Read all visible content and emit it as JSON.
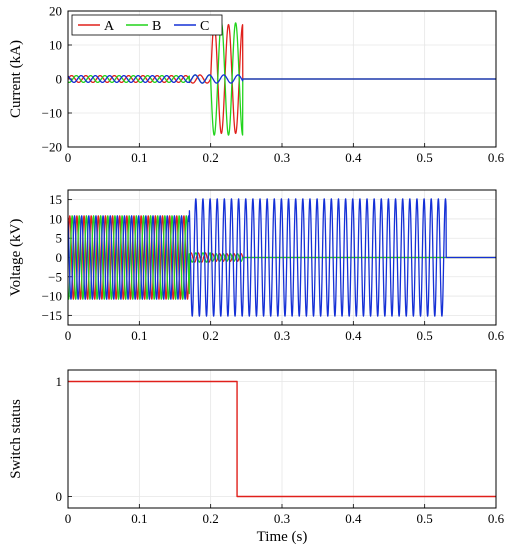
{
  "chart_data": [
    {
      "type": "line",
      "ylabel": "Current (kA)",
      "xlim": [
        0,
        0.6
      ],
      "ylim": [
        -20,
        20
      ],
      "xticks": [
        "0",
        "0.1",
        "0.2",
        "0.3",
        "0.4",
        "0.5",
        "0.6"
      ],
      "yticks": [
        "20",
        "10",
        "0",
        "−10",
        "−20"
      ],
      "grid": true,
      "legend": {
        "position": "top-left",
        "entries": [
          "A",
          "B",
          "C"
        ]
      },
      "series": [
        {
          "name": "A",
          "color": "#e0201b",
          "frequency_hz": 50,
          "segments": [
            {
              "t": [
                0,
                0.17
              ],
              "amplitude": 1.0,
              "phase_deg": 0
            },
            {
              "t": [
                0.2,
                0.245
              ],
              "amplitude": 16.0,
              "phase_deg": 0
            },
            {
              "t": [
                0.245,
                0.6
              ],
              "amplitude": 0,
              "phase_deg": 0
            }
          ]
        },
        {
          "name": "B",
          "color": "#22d41c",
          "frequency_hz": 50,
          "segments": [
            {
              "t": [
                0,
                0.17
              ],
              "amplitude": 1.0,
              "phase_deg": -120
            },
            {
              "t": [
                0.2,
                0.245
              ],
              "amplitude": 16.5,
              "phase_deg": 180
            },
            {
              "t": [
                0.245,
                0.6
              ],
              "amplitude": 0,
              "phase_deg": 0
            }
          ]
        },
        {
          "name": "C",
          "color": "#1530d6",
          "frequency_hz": 50,
          "segments": [
            {
              "t": [
                0,
                0.17
              ],
              "amplitude": 1.0,
              "phase_deg": 120
            },
            {
              "t": [
                0.17,
                0.245
              ],
              "amplitude": 1.2,
              "phase_deg": 120
            },
            {
              "t": [
                0.245,
                0.6
              ],
              "amplitude": 0,
              "phase_deg": 0
            }
          ]
        }
      ]
    },
    {
      "type": "line",
      "ylabel": "Voltage (kV)",
      "xlim": [
        0,
        0.6
      ],
      "ylim": [
        -17.5,
        17.5
      ],
      "xticks": [
        "0",
        "0.1",
        "0.2",
        "0.3",
        "0.4",
        "0.5",
        "0.6"
      ],
      "yticks": [
        "15",
        "10",
        "5",
        "0",
        "−5",
        "−10",
        "−15"
      ],
      "grid": true,
      "series": [
        {
          "name": "A",
          "color": "#e0201b",
          "frequency_hz": 100,
          "segments": [
            {
              "t": [
                0,
                0.17
              ],
              "amplitude": 10.8,
              "phase_deg": 0
            },
            {
              "t": [
                0.2,
                0.245
              ],
              "amplitude": 1.0,
              "phase_deg": 0
            },
            {
              "t": [
                0.245,
                0.6
              ],
              "amplitude": 0,
              "phase_deg": 0
            }
          ]
        },
        {
          "name": "B",
          "color": "#22d41c",
          "frequency_hz": 100,
          "segments": [
            {
              "t": [
                0,
                0.17
              ],
              "amplitude": 10.8,
              "phase_deg": -120
            },
            {
              "t": [
                0.2,
                0.245
              ],
              "amplitude": 1.0,
              "phase_deg": 180
            },
            {
              "t": [
                0.245,
                0.6
              ],
              "amplitude": 0,
              "phase_deg": 0
            }
          ]
        },
        {
          "name": "C",
          "color": "#1530d6",
          "frequency_hz": 100,
          "segments": [
            {
              "t": [
                0,
                0.17
              ],
              "amplitude": 10.8,
              "phase_deg": 120
            },
            {
              "t": [
                0.17,
                0.53
              ],
              "amplitude": 15.2,
              "phase_deg": 120
            },
            {
              "t": [
                0.53,
                0.6
              ],
              "amplitude": 0,
              "phase_deg": 0
            }
          ]
        }
      ]
    },
    {
      "type": "line",
      "xlabel": "Time (s)",
      "ylabel": "Switch status",
      "xlim": [
        0,
        0.6
      ],
      "ylim": [
        -0.1,
        1.1
      ],
      "xticks": [
        "0",
        "0.1",
        "0.2",
        "0.3",
        "0.4",
        "0.5",
        "0.6"
      ],
      "yticks": [
        "1",
        "0"
      ],
      "grid": true,
      "series": [
        {
          "color": "#e0201b",
          "x": [
            0,
            0.237,
            0.237,
            0.6
          ],
          "y": [
            1,
            1,
            0,
            0
          ]
        }
      ]
    }
  ]
}
